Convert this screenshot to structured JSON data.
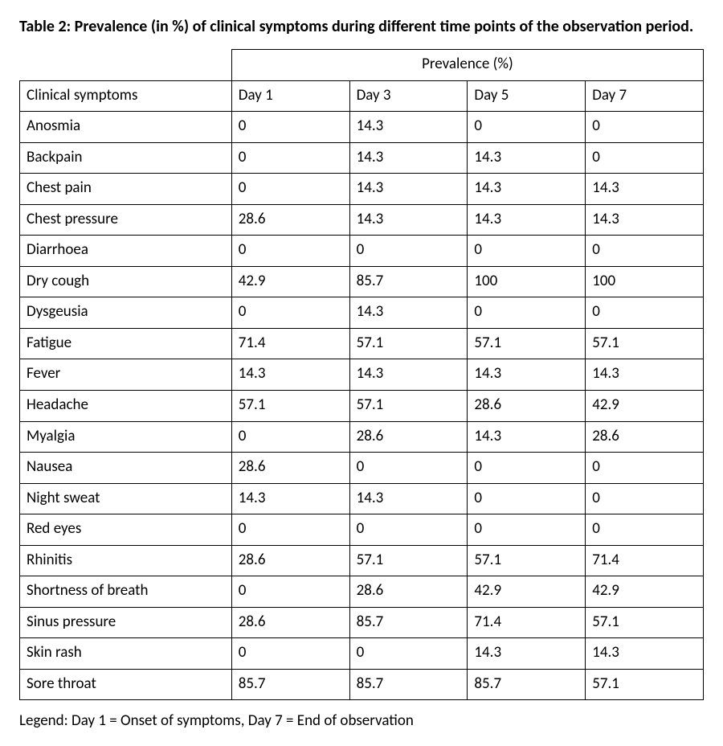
{
  "title": "Table 2: Prevalence (in %) of clinical symptoms during different time points of the observation period.",
  "legend": "Legend: Day 1 = Onset of symptoms, Day 7 = End of observation",
  "table": {
    "type": "table",
    "row_header_label": "Clinical symptoms",
    "span_header": "Prevalence (%)",
    "columns": [
      "Day 1",
      "Day 3",
      "Day 5",
      "Day 7"
    ],
    "rows": [
      {
        "label": "Anosmia",
        "values": [
          "0",
          "14.3",
          "0",
          "0"
        ]
      },
      {
        "label": "Backpain",
        "values": [
          "0",
          "14.3",
          "14.3",
          "0"
        ]
      },
      {
        "label": "Chest pain",
        "values": [
          "0",
          "14.3",
          "14.3",
          "14.3"
        ]
      },
      {
        "label": "Chest pressure",
        "values": [
          "28.6",
          "14.3",
          "14.3",
          "14.3"
        ]
      },
      {
        "label": "Diarrhoea",
        "values": [
          "0",
          "0",
          "0",
          "0"
        ]
      },
      {
        "label": "Dry cough",
        "values": [
          "42.9",
          "85.7",
          "100",
          "100"
        ]
      },
      {
        "label": "Dysgeusia",
        "values": [
          "0",
          "14.3",
          "0",
          "0"
        ]
      },
      {
        "label": "Fatigue",
        "values": [
          "71.4",
          "57.1",
          "57.1",
          "57.1"
        ]
      },
      {
        "label": "Fever",
        "values": [
          "14.3",
          "14.3",
          "14.3",
          "14.3"
        ]
      },
      {
        "label": "Headache",
        "values": [
          "57.1",
          "57.1",
          "28.6",
          "42.9"
        ]
      },
      {
        "label": "Myalgia",
        "values": [
          "0",
          "28.6",
          "14.3",
          "28.6"
        ]
      },
      {
        "label": "Nausea",
        "values": [
          "28.6",
          "0",
          "0",
          "0"
        ]
      },
      {
        "label": "Night sweat",
        "values": [
          "14.3",
          "14.3",
          "0",
          "0"
        ]
      },
      {
        "label": "Red eyes",
        "values": [
          "0",
          "0",
          "0",
          "0"
        ]
      },
      {
        "label": "Rhinitis",
        "values": [
          "28.6",
          "57.1",
          "57.1",
          "71.4"
        ]
      },
      {
        "label": "Shortness of breath",
        "values": [
          "0",
          "28.6",
          "42.9",
          "42.9"
        ]
      },
      {
        "label": "Sinus pressure",
        "values": [
          "28.6",
          "85.7",
          "71.4",
          "57.1"
        ]
      },
      {
        "label": "Skin rash",
        "values": [
          "0",
          "0",
          "14.3",
          "14.3"
        ]
      },
      {
        "label": "Sore throat",
        "values": [
          "85.7",
          "85.7",
          "85.7",
          "57.1"
        ]
      }
    ],
    "border_color": "#000000",
    "background_color": "#ffffff",
    "font_size_pt": 14,
    "column_widths_pct": [
      31,
      17.25,
      17.25,
      17.25,
      17.25
    ],
    "cell_align": "left"
  },
  "title_style": {
    "font_weight": 700,
    "font_size_pt": 15
  },
  "colors": {
    "text": "#000000",
    "background": "#ffffff",
    "border": "#000000"
  }
}
